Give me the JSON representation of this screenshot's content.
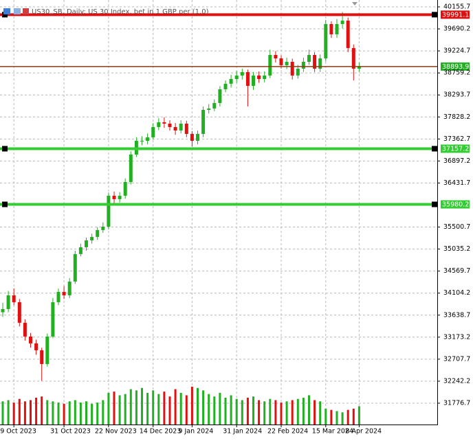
{
  "chart_data": {
    "type": "candlestick",
    "title": "US30_SB, Daily: US 30 Index, bet in 1 GBP per (1.0)",
    "categories": [
      null,
      null,
      "9 Oct 2023",
      null,
      null,
      null,
      null,
      null,
      null,
      null,
      null,
      "31 Oct 2023",
      null,
      null,
      null,
      null,
      null,
      null,
      null,
      "22 Nov 2023",
      null,
      null,
      null,
      null,
      null,
      null,
      null,
      "14 Dec 2023",
      null,
      null,
      null,
      null,
      null,
      null,
      "9 Jan 2024",
      null,
      null,
      null,
      null,
      null,
      null,
      null,
      "31 Jan 2024",
      null,
      null,
      null,
      null,
      null,
      null,
      null,
      "22 Feb 2024",
      null,
      null,
      null,
      null,
      null,
      null,
      null,
      "15 Mar 2024",
      null,
      null,
      null,
      null,
      null,
      "8 Apr 2024"
    ],
    "series": [
      {
        "up_color": "#22b022",
        "down_color": "#e01010",
        "open": [
          33700,
          33767,
          34057,
          33912,
          33477,
          33186,
          33041,
          32896,
          32605,
          33186,
          33912,
          34130,
          34057,
          34348,
          34929,
          35074,
          35219,
          35292,
          35437,
          35509,
          36163,
          36090,
          36163,
          36453,
          37034,
          37324,
          37324,
          37397,
          37615,
          37716,
          37687,
          37615,
          37542,
          37687,
          37470,
          37324,
          37470,
          37978,
          38007,
          38123,
          38413,
          38530,
          38631,
          38704,
          38776,
          38486,
          38704,
          38631,
          38704,
          39139,
          39067,
          38922,
          38994,
          38704,
          38849,
          38994,
          39139,
          38849,
          39067,
          39793,
          39575,
          39793,
          39865,
          39285,
          38849
        ],
        "high": [
          33900,
          34150,
          34200,
          33980,
          33550,
          33260,
          33120,
          32950,
          33250,
          34000,
          34200,
          34250,
          34420,
          35000,
          35150,
          35280,
          35360,
          35500,
          35600,
          36230,
          36250,
          36240,
          36530,
          37100,
          37400,
          37420,
          37480,
          37700,
          37800,
          37820,
          37760,
          37700,
          37760,
          37750,
          37530,
          37540,
          38050,
          38100,
          38200,
          38480,
          38600,
          38720,
          38800,
          38850,
          38830,
          38780,
          38790,
          38790,
          39250,
          39220,
          39130,
          39080,
          39060,
          38930,
          39080,
          39250,
          39200,
          39150,
          39880,
          39850,
          39900,
          40050,
          39930,
          39360,
          38980
        ],
        "low": [
          33600,
          33700,
          33850,
          33400,
          33100,
          32950,
          32800,
          32250,
          32550,
          33150,
          33850,
          33980,
          34000,
          34300,
          34880,
          35000,
          35150,
          35230,
          35380,
          35450,
          36000,
          36020,
          36100,
          36400,
          36980,
          37230,
          37250,
          37350,
          37550,
          37600,
          37540,
          37450,
          37480,
          37400,
          37200,
          37250,
          37400,
          37900,
          37950,
          38050,
          38350,
          38450,
          38550,
          38620,
          38050,
          38400,
          38550,
          38560,
          38650,
          38980,
          38850,
          38840,
          38620,
          38640,
          38780,
          38930,
          38780,
          38780,
          39000,
          39500,
          39500,
          39700,
          39200,
          38600,
          38780
        ],
        "close": [
          33767,
          34057,
          33912,
          33477,
          33186,
          33041,
          32896,
          32605,
          33186,
          33912,
          34130,
          34057,
          34348,
          34929,
          35074,
          35219,
          35292,
          35437,
          35509,
          36163,
          36090,
          36163,
          36453,
          37034,
          37324,
          37324,
          37397,
          37615,
          37716,
          37687,
          37615,
          37542,
          37687,
          37470,
          37324,
          37470,
          37978,
          38007,
          38123,
          38413,
          38530,
          38631,
          38704,
          38776,
          38486,
          38704,
          38631,
          38704,
          39139,
          39067,
          38922,
          38994,
          38704,
          38849,
          38994,
          39139,
          38849,
          39067,
          39793,
          39575,
          39793,
          39865,
          39285,
          38849,
          38894
        ],
        "volume": [
          38,
          40,
          36,
          42,
          38,
          40,
          44,
          46,
          40,
          38,
          36,
          34,
          38,
          40,
          36,
          38,
          34,
          36,
          40,
          52,
          54,
          48,
          50,
          58,
          56,
          60,
          52,
          56,
          50,
          54,
          46,
          58,
          52,
          48,
          62,
          60,
          56,
          50,
          46,
          52,
          44,
          48,
          42,
          40,
          44,
          46,
          40,
          38,
          42,
          40,
          36,
          38,
          40,
          42,
          44,
          48,
          40,
          38,
          26,
          24,
          22,
          20,
          24,
          26,
          30
        ]
      }
    ],
    "ylim": [
      31326,
      40301
    ],
    "yticks": [
      40155.7,
      39690.2,
      39224.7,
      38759.2,
      38293.7,
      37828.2,
      37362.7,
      36897.2,
      36431.7,
      35500.7,
      35035.2,
      34569.7,
      34104.2,
      33638.7,
      33173.2,
      32707.7,
      32242.2,
      31776.7
    ],
    "grid": true,
    "levels": [
      {
        "value": 39991.1,
        "color": "#e01010",
        "label_bg": "#e01010",
        "label_color": "#ffffff",
        "width": 4,
        "handles": true
      },
      {
        "value": 38893.9,
        "color": "#8b3a10",
        "label_bg": "#22b022",
        "label_color": "#ffffff",
        "width": 1.5,
        "handles": false
      },
      {
        "value": 37157.2,
        "color": "#33cc33",
        "label_bg": "#33cc33",
        "label_color": "#ffffff",
        "width": 4,
        "handles": true
      },
      {
        "value": 35980.2,
        "color": "#33cc33",
        "label_bg": "#33cc33",
        "label_color": "#ffffff",
        "width": 4,
        "handles": true
      }
    ]
  }
}
